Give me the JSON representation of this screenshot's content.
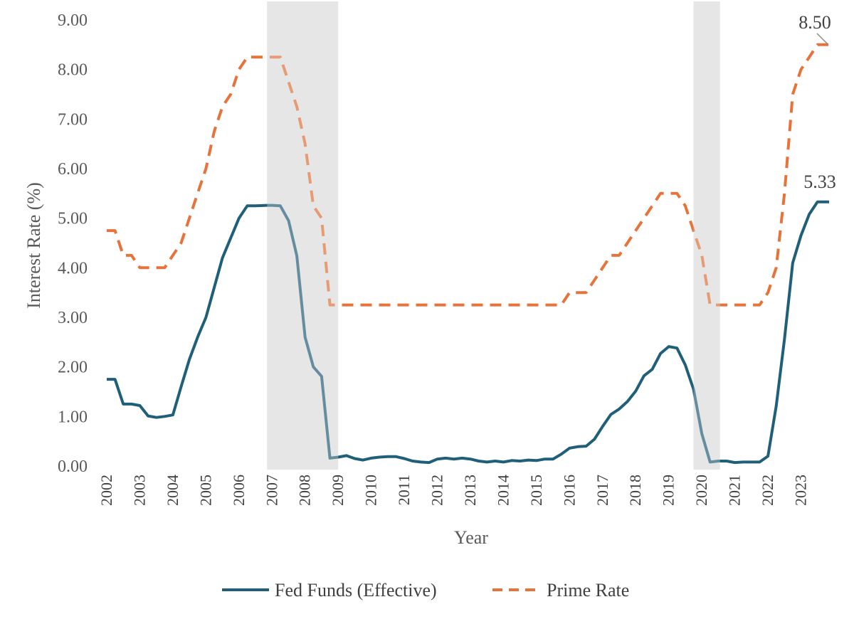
{
  "chart_data": {
    "type": "line",
    "xlabel": "Year",
    "ylabel": "Interest Rate (%)",
    "ylim": [
      0,
      9
    ],
    "y_ticks": [
      "0.00",
      "1.00",
      "2.00",
      "3.00",
      "4.00",
      "5.00",
      "6.00",
      "7.00",
      "8.00",
      "9.00"
    ],
    "xlim": [
      2002,
      2023.85
    ],
    "x_ticks": [
      "2002",
      "2003",
      "2004",
      "2005",
      "2006",
      "2007",
      "2008",
      "2009",
      "2010",
      "2011",
      "2012",
      "2013",
      "2014",
      "2015",
      "2016",
      "2017",
      "2018",
      "2019",
      "2020",
      "2021",
      "2022",
      "2023"
    ],
    "recessions": [
      {
        "start": 2006.85,
        "end": 2009.0
      },
      {
        "start": 2019.75,
        "end": 2020.55
      }
    ],
    "series": [
      {
        "name": "Fed Funds (Effective)",
        "color": "#1F5F7A",
        "style": "solid",
        "points": [
          [
            2002.0,
            1.75
          ],
          [
            2002.25,
            1.75
          ],
          [
            2002.5,
            1.25
          ],
          [
            2002.75,
            1.25
          ],
          [
            2003.0,
            1.22
          ],
          [
            2003.25,
            1.01
          ],
          [
            2003.5,
            0.98
          ],
          [
            2003.75,
            1.0
          ],
          [
            2004.0,
            1.03
          ],
          [
            2004.25,
            1.6
          ],
          [
            2004.5,
            2.15
          ],
          [
            2004.75,
            2.6
          ],
          [
            2005.0,
            3.0
          ],
          [
            2005.25,
            3.6
          ],
          [
            2005.5,
            4.2
          ],
          [
            2005.75,
            4.6
          ],
          [
            2006.0,
            5.0
          ],
          [
            2006.25,
            5.25
          ],
          [
            2006.5,
            5.25
          ],
          [
            2006.85,
            5.26
          ],
          [
            2007.0,
            5.26
          ],
          [
            2007.25,
            5.25
          ],
          [
            2007.5,
            4.95
          ],
          [
            2007.75,
            4.24
          ],
          [
            2008.0,
            2.6
          ],
          [
            2008.25,
            2.0
          ],
          [
            2008.5,
            1.81
          ],
          [
            2008.75,
            0.16
          ],
          [
            2009.0,
            0.18
          ],
          [
            2009.25,
            0.21
          ],
          [
            2009.5,
            0.15
          ],
          [
            2009.75,
            0.12
          ],
          [
            2010.0,
            0.16
          ],
          [
            2010.25,
            0.18
          ],
          [
            2010.5,
            0.19
          ],
          [
            2010.75,
            0.19
          ],
          [
            2011.0,
            0.15
          ],
          [
            2011.25,
            0.1
          ],
          [
            2011.5,
            0.08
          ],
          [
            2011.75,
            0.07
          ],
          [
            2012.0,
            0.14
          ],
          [
            2012.25,
            0.16
          ],
          [
            2012.5,
            0.14
          ],
          [
            2012.75,
            0.16
          ],
          [
            2013.0,
            0.14
          ],
          [
            2013.25,
            0.1
          ],
          [
            2013.5,
            0.08
          ],
          [
            2013.75,
            0.1
          ],
          [
            2014.0,
            0.08
          ],
          [
            2014.25,
            0.11
          ],
          [
            2014.5,
            0.1
          ],
          [
            2014.75,
            0.12
          ],
          [
            2015.0,
            0.11
          ],
          [
            2015.25,
            0.14
          ],
          [
            2015.5,
            0.14
          ],
          [
            2015.75,
            0.24
          ],
          [
            2016.0,
            0.36
          ],
          [
            2016.25,
            0.39
          ],
          [
            2016.5,
            0.4
          ],
          [
            2016.75,
            0.54
          ],
          [
            2017.0,
            0.8
          ],
          [
            2017.25,
            1.04
          ],
          [
            2017.5,
            1.15
          ],
          [
            2017.75,
            1.3
          ],
          [
            2018.0,
            1.51
          ],
          [
            2018.25,
            1.82
          ],
          [
            2018.5,
            1.95
          ],
          [
            2018.75,
            2.27
          ],
          [
            2019.0,
            2.41
          ],
          [
            2019.25,
            2.38
          ],
          [
            2019.5,
            2.04
          ],
          [
            2019.75,
            1.55
          ],
          [
            2020.0,
            0.65
          ],
          [
            2020.25,
            0.08
          ],
          [
            2020.5,
            0.1
          ],
          [
            2020.75,
            0.1
          ],
          [
            2021.0,
            0.07
          ],
          [
            2021.25,
            0.08
          ],
          [
            2021.5,
            0.08
          ],
          [
            2021.75,
            0.08
          ],
          [
            2022.0,
            0.2
          ],
          [
            2022.25,
            1.21
          ],
          [
            2022.5,
            2.56
          ],
          [
            2022.75,
            4.1
          ],
          [
            2023.0,
            4.65
          ],
          [
            2023.25,
            5.08
          ],
          [
            2023.5,
            5.33
          ],
          [
            2023.85,
            5.33
          ]
        ]
      },
      {
        "name": "Prime Rate",
        "color": "#E8733A",
        "style": "dashed",
        "points": [
          [
            2002.0,
            4.75
          ],
          [
            2002.25,
            4.75
          ],
          [
            2002.5,
            4.25
          ],
          [
            2002.75,
            4.25
          ],
          [
            2003.0,
            4.0
          ],
          [
            2003.75,
            4.0
          ],
          [
            2004.0,
            4.25
          ],
          [
            2004.25,
            4.5
          ],
          [
            2004.5,
            5.0
          ],
          [
            2004.75,
            5.5
          ],
          [
            2005.0,
            6.0
          ],
          [
            2005.25,
            6.75
          ],
          [
            2005.5,
            7.25
          ],
          [
            2005.75,
            7.5
          ],
          [
            2006.0,
            8.0
          ],
          [
            2006.25,
            8.25
          ],
          [
            2007.0,
            8.25
          ],
          [
            2007.25,
            8.25
          ],
          [
            2007.5,
            7.75
          ],
          [
            2007.75,
            7.25
          ],
          [
            2008.0,
            6.5
          ],
          [
            2008.25,
            5.25
          ],
          [
            2008.5,
            5.0
          ],
          [
            2008.75,
            3.25
          ],
          [
            2015.75,
            3.25
          ],
          [
            2016.0,
            3.5
          ],
          [
            2016.5,
            3.5
          ],
          [
            2016.75,
            3.75
          ],
          [
            2017.0,
            4.0
          ],
          [
            2017.25,
            4.25
          ],
          [
            2017.5,
            4.25
          ],
          [
            2017.75,
            4.5
          ],
          [
            2018.0,
            4.75
          ],
          [
            2018.25,
            5.0
          ],
          [
            2018.5,
            5.25
          ],
          [
            2018.75,
            5.5
          ],
          [
            2019.0,
            5.5
          ],
          [
            2019.25,
            5.5
          ],
          [
            2019.5,
            5.25
          ],
          [
            2019.75,
            4.75
          ],
          [
            2020.0,
            4.25
          ],
          [
            2020.25,
            3.25
          ],
          [
            2021.75,
            3.25
          ],
          [
            2022.0,
            3.5
          ],
          [
            2022.25,
            4.0
          ],
          [
            2022.5,
            5.5
          ],
          [
            2022.75,
            7.5
          ],
          [
            2023.0,
            8.0
          ],
          [
            2023.25,
            8.25
          ],
          [
            2023.5,
            8.5
          ],
          [
            2023.85,
            8.5
          ]
        ]
      }
    ],
    "annotations": [
      {
        "text": "8.50",
        "series": "Prime Rate",
        "x": 2023.85,
        "y": 8.5
      },
      {
        "text": "5.33",
        "series": "Fed Funds (Effective)",
        "x": 2023.85,
        "y": 5.33
      }
    ],
    "legend_position": "bottom",
    "grid": false
  }
}
